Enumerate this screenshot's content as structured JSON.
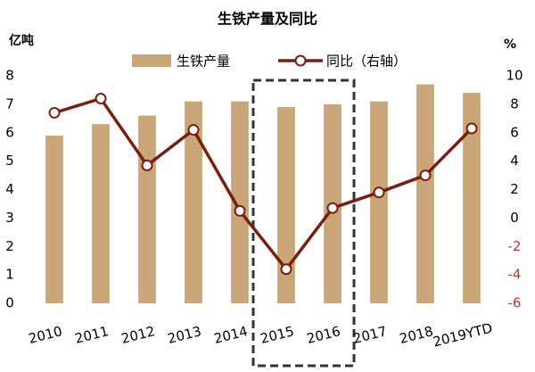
{
  "chart_data": {
    "type": "bar-line",
    "title": "生铁产量及同比",
    "y_label": "亿吨",
    "y2_label": "%",
    "categories": [
      "2010",
      "2011",
      "2012",
      "2013",
      "2014",
      "2015",
      "2016",
      "2017",
      "2018",
      "2019YTD"
    ],
    "series": [
      {
        "name": "生铁产量",
        "type": "bar",
        "color": "#c9a577",
        "values": [
          5.9,
          6.3,
          6.6,
          7.1,
          7.1,
          6.9,
          7.0,
          7.1,
          7.7,
          7.4
        ]
      },
      {
        "name": "同比（右轴）",
        "type": "line",
        "axis": "y2",
        "color": "#7a1f10",
        "values": [
          7.4,
          8.4,
          3.7,
          6.2,
          0.5,
          -3.6,
          0.7,
          1.8,
          3.0,
          6.3
        ]
      }
    ],
    "ylim": [
      0,
      8
    ],
    "yticks": [
      0,
      1,
      2,
      3,
      4,
      5,
      6,
      7,
      8
    ],
    "y2lim": [
      -6,
      10
    ],
    "y2ticks": [
      -6,
      -4,
      -2,
      0,
      2,
      4,
      6,
      8,
      10
    ],
    "negative_tick_color": "#c0392b"
  }
}
